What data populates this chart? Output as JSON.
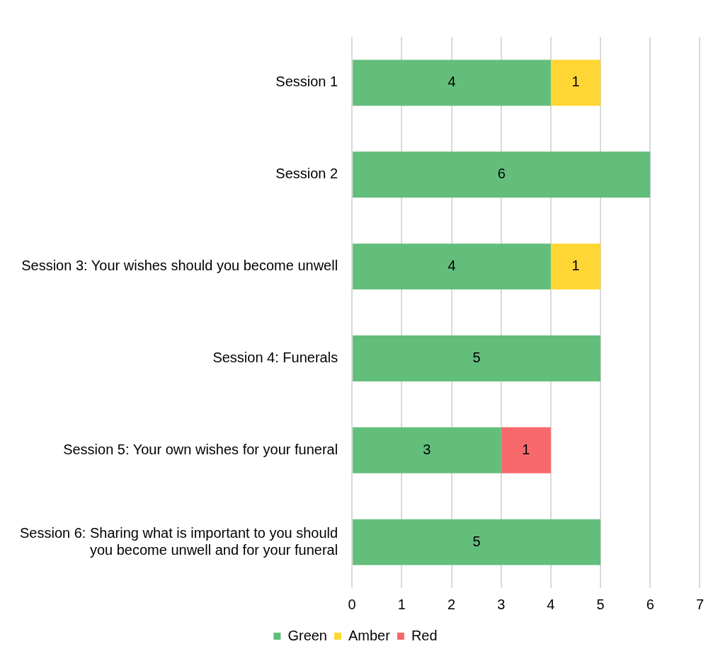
{
  "chart_data": {
    "type": "bar",
    "orientation": "horizontal",
    "stacked": true,
    "categories": [
      "Session 1",
      "Session 2",
      "Session 3: Your wishes should you become unwell",
      "Session 4: Funerals",
      "Session 5: Your own wishes for your funeral",
      "Session 6: Sharing what is important to you should you become unwell and for your funeral"
    ],
    "series": [
      {
        "name": "Green",
        "color": "#63be7b",
        "values": [
          4,
          6,
          4,
          5,
          3,
          5
        ]
      },
      {
        "name": "Amber",
        "color": "#ffd633",
        "values": [
          1,
          null,
          1,
          null,
          null,
          null
        ]
      },
      {
        "name": "Red",
        "color": "#f8696b",
        "values": [
          null,
          null,
          null,
          null,
          1,
          null
        ]
      }
    ],
    "xlim": [
      0,
      7
    ],
    "xticks": [
      0,
      1,
      2,
      3,
      4,
      5,
      6,
      7
    ],
    "grid": "x",
    "legend": "bottom",
    "data_labels": true
  }
}
